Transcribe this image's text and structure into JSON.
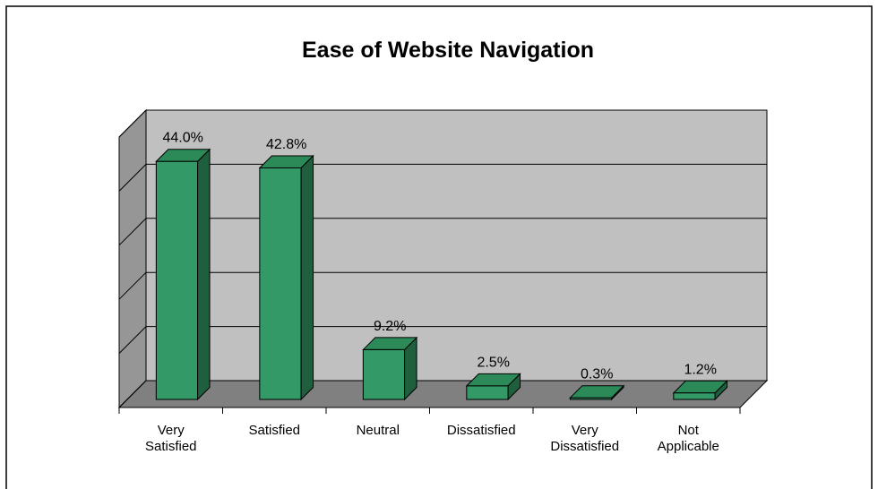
{
  "chart_data": {
    "type": "bar3d",
    "title": "Ease of Website Navigation",
    "categories": [
      "Very Satisfied",
      "Satisfied",
      "Neutral",
      "Dissatisfied",
      "Very Dissatisfied",
      "Not Applicable"
    ],
    "values": [
      44.0,
      42.8,
      9.2,
      2.5,
      0.3,
      1.2
    ],
    "value_labels": [
      "44.0%",
      "42.8%",
      "9.2%",
      "2.5%",
      "0.3%",
      "1.2%"
    ],
    "color": "#339966",
    "ylim": [
      0,
      50
    ],
    "yticks": [
      0,
      10,
      20,
      30,
      40,
      50
    ],
    "grid": true
  }
}
